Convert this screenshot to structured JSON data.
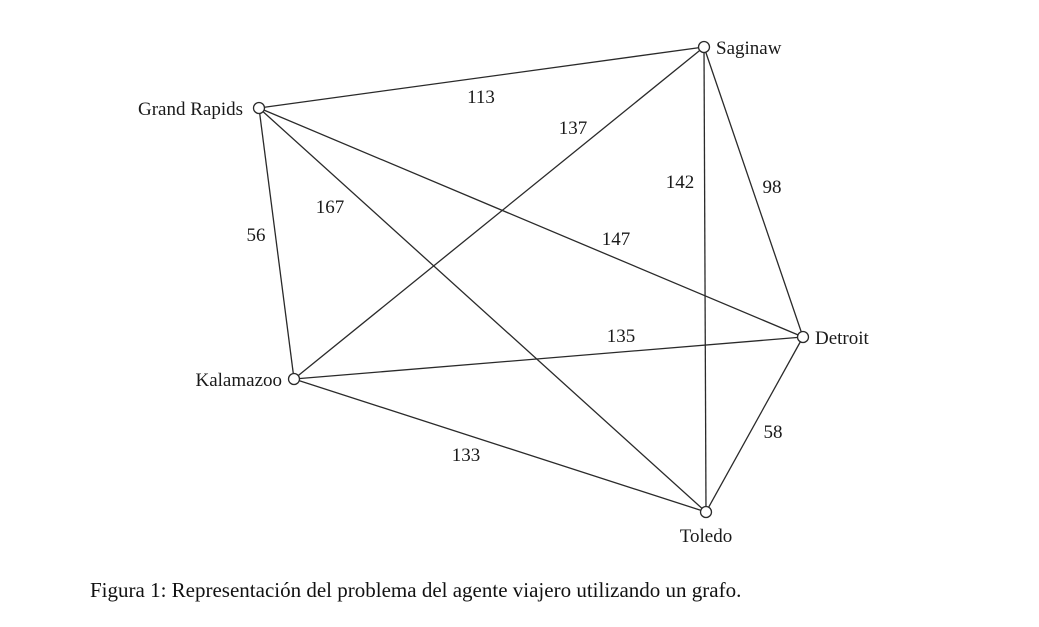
{
  "graph": {
    "nodes": [
      {
        "id": "grand-rapids",
        "label": "Grand Rapids"
      },
      {
        "id": "saginaw",
        "label": "Saginaw"
      },
      {
        "id": "detroit",
        "label": "Detroit"
      },
      {
        "id": "kalamazoo",
        "label": "Kalamazoo"
      },
      {
        "id": "toledo",
        "label": "Toledo"
      }
    ],
    "edges": [
      {
        "from": "grand-rapids",
        "to": "saginaw",
        "weight": "113"
      },
      {
        "from": "kalamazoo",
        "to": "saginaw",
        "weight": "137"
      },
      {
        "from": "toledo",
        "to": "saginaw",
        "weight": "142"
      },
      {
        "from": "saginaw",
        "to": "detroit",
        "weight": "98"
      },
      {
        "from": "grand-rapids",
        "to": "kalamazoo",
        "weight": "56"
      },
      {
        "from": "grand-rapids",
        "to": "toledo",
        "weight": "167"
      },
      {
        "from": "grand-rapids",
        "to": "detroit",
        "weight": "147"
      },
      {
        "from": "kalamazoo",
        "to": "detroit",
        "weight": "135"
      },
      {
        "from": "kalamazoo",
        "to": "toledo",
        "weight": "133"
      },
      {
        "from": "toledo",
        "to": "detroit",
        "weight": "58"
      }
    ]
  },
  "caption": "Figura 1: Representación del problema del agente viajero utilizando un grafo."
}
